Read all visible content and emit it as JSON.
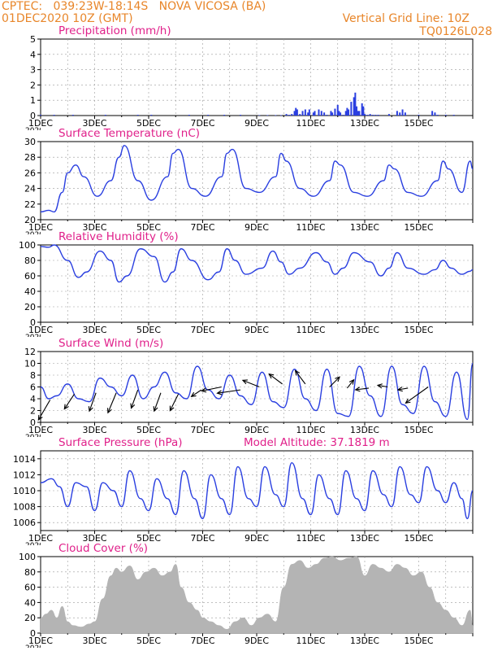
{
  "header": {
    "line1_left": "CPTEC:   039:23W-18:14S   NOVA VICOSA (BA)",
    "line2_left": "01DEC2020 10Z (GMT)",
    "line1_right": "Vertical Grid Line: 10Z",
    "line2_right": "TQ0126L028",
    "model_altitude": "Model Altitude: 37.1819 m"
  },
  "colors": {
    "header_text": "#e8862a",
    "panel_title": "#e0208a",
    "series_line": "#2a3fe0",
    "wind_arrow": "#000000",
    "cloud_fill": "#b4b4b4",
    "grid": "#9a9a9a"
  },
  "chart_data": [
    {
      "type": "bar",
      "title": "Precipitation (mm/h)",
      "ylim": [
        0,
        5
      ],
      "yticks": [
        "0",
        "1",
        "2",
        "3",
        "4",
        "5"
      ],
      "xlabels": [
        "1DEC",
        "3DEC",
        "5DEC",
        "7DEC",
        "9DEC",
        "11DEC",
        "13DEC",
        "15DEC"
      ],
      "x_overflow_label": "2020",
      "x": [
        0.0,
        0.5,
        1.2,
        2.4,
        3.6,
        4.1,
        5.5,
        6.2,
        6.8,
        7.4,
        8.1,
        8.4,
        8.7,
        8.9,
        9.1,
        9.2,
        9.3,
        9.4,
        9.45,
        9.5,
        9.6,
        9.7,
        9.8,
        9.9,
        9.95,
        10.1,
        10.15,
        10.3,
        10.4,
        10.5,
        10.6,
        10.75,
        10.8,
        10.9,
        11.0,
        11.05,
        11.1,
        11.2,
        11.3,
        11.35,
        11.4,
        11.5,
        11.6,
        11.65,
        11.7,
        11.75,
        11.8,
        11.9,
        11.95,
        12.0,
        12.1,
        12.2,
        12.3,
        12.4,
        12.5,
        12.9,
        13.2,
        13.3,
        13.4,
        13.5,
        14.0,
        14.5,
        14.6,
        14.7,
        15.0,
        15.3
      ],
      "values": [
        0.05,
        0.05,
        0.05,
        0.05,
        0.05,
        0.05,
        0.05,
        0.05,
        0.05,
        0.05,
        0.03,
        0.03,
        0.03,
        0.03,
        0.1,
        0.05,
        0.1,
        0.3,
        0.5,
        0.4,
        0.1,
        0.3,
        0.4,
        0.2,
        0.4,
        0.2,
        0.3,
        0.4,
        0.3,
        0.2,
        0.05,
        0.3,
        0.2,
        0.45,
        0.7,
        0.3,
        0.2,
        0.05,
        0.3,
        0.5,
        0.4,
        0.9,
        1.2,
        1.5,
        0.6,
        0.3,
        0.3,
        0.8,
        0.6,
        0.1,
        0.05,
        0.1,
        0.05,
        0.05,
        0.05,
        0.1,
        0.3,
        0.2,
        0.4,
        0.2,
        0.05,
        0.3,
        0.2,
        0.05,
        0.05,
        0.05
      ]
    },
    {
      "type": "line",
      "title": "Surface Temperature (nC)",
      "ylim": [
        20,
        30
      ],
      "yticks": [
        "20",
        "22",
        "24",
        "26",
        "28",
        "30"
      ],
      "xlabels": [
        "1DEC",
        "3DEC",
        "5DEC",
        "7DEC",
        "9DEC",
        "11DEC",
        "13DEC",
        "15DEC"
      ],
      "x_overflow_label": "2020",
      "x": [
        0.0,
        0.3,
        0.5,
        0.8,
        1.0,
        1.3,
        1.6,
        2.1,
        2.6,
        2.9,
        3.1,
        3.6,
        4.1,
        4.7,
        4.9,
        5.1,
        5.6,
        6.1,
        6.7,
        6.9,
        7.1,
        7.6,
        8.1,
        8.7,
        8.9,
        9.1,
        9.6,
        10.1,
        10.7,
        10.9,
        11.1,
        11.6,
        12.1,
        12.7,
        12.9,
        13.1,
        13.6,
        14.1,
        14.7,
        14.9,
        15.1,
        15.6,
        15.9,
        16.0
      ],
      "values": [
        21.0,
        21.2,
        21.0,
        23.5,
        26.0,
        27.0,
        25.5,
        23.0,
        25.0,
        28.0,
        29.5,
        25.0,
        22.5,
        25.5,
        28.5,
        29.0,
        24.0,
        23.0,
        25.5,
        28.5,
        29.0,
        24.0,
        23.5,
        25.5,
        28.5,
        27.5,
        24.0,
        23.0,
        25.0,
        27.5,
        27.0,
        23.5,
        23.0,
        25.0,
        27.0,
        26.5,
        23.5,
        23.0,
        25.0,
        27.5,
        26.5,
        23.5,
        27.5,
        26.5
      ]
    },
    {
      "type": "line",
      "title": "Relative Humidity (%)",
      "ylim": [
        0,
        100
      ],
      "yticks": [
        "0",
        "20",
        "40",
        "60",
        "80",
        "100"
      ],
      "xlabels": [
        "1DEC",
        "3DEC",
        "5DEC",
        "7DEC",
        "9DEC",
        "11DEC",
        "13DEC",
        "15DEC"
      ],
      "x_overflow_label": "2020",
      "x": [
        0.0,
        0.3,
        0.5,
        1.0,
        1.4,
        1.7,
        2.2,
        2.6,
        2.9,
        3.2,
        3.7,
        4.2,
        4.6,
        4.9,
        5.2,
        5.6,
        6.2,
        6.6,
        6.9,
        7.2,
        7.6,
        8.2,
        8.6,
        8.9,
        9.2,
        9.6,
        10.2,
        10.6,
        10.9,
        11.2,
        11.6,
        12.2,
        12.6,
        12.9,
        13.2,
        13.6,
        14.2,
        14.6,
        14.9,
        15.2,
        15.6,
        15.9,
        16.0
      ],
      "values": [
        98.0,
        97.0,
        100.0,
        80.0,
        58.0,
        65.0,
        92.0,
        80.0,
        52.0,
        60.0,
        95.0,
        85.0,
        52.0,
        65.0,
        95.0,
        80.0,
        55.0,
        65.0,
        95.0,
        80.0,
        62.0,
        70.0,
        92.0,
        78.0,
        62.0,
        70.0,
        90.0,
        78.0,
        62.0,
        70.0,
        90.0,
        78.0,
        60.0,
        70.0,
        90.0,
        70.0,
        62.0,
        68.0,
        80.0,
        70.0,
        62.0,
        66.0,
        68.0
      ]
    },
    {
      "type": "line",
      "title": "Surface Wind (m/s)",
      "ylim": [
        0,
        12
      ],
      "yticks": [
        "0",
        "2",
        "4",
        "6",
        "8",
        "10",
        "12"
      ],
      "xlabels": [
        "1DEC",
        "3DEC",
        "5DEC",
        "7DEC",
        "9DEC",
        "11DEC",
        "13DEC",
        "15DEC"
      ],
      "x_overflow_label": "2020",
      "x": [
        0.0,
        0.3,
        0.6,
        1.0,
        1.4,
        1.8,
        2.2,
        2.6,
        3.0,
        3.4,
        3.8,
        4.2,
        4.6,
        5.0,
        5.4,
        5.8,
        6.2,
        6.6,
        7.0,
        7.4,
        7.8,
        8.2,
        8.6,
        9.0,
        9.4,
        9.8,
        10.2,
        10.6,
        11.0,
        11.4,
        11.8,
        12.2,
        12.6,
        13.0,
        13.4,
        13.8,
        14.2,
        14.6,
        15.0,
        15.4,
        15.8,
        16.0
      ],
      "values": [
        6.0,
        4.0,
        4.5,
        6.5,
        4.0,
        3.5,
        7.5,
        6.0,
        4.5,
        8.0,
        4.0,
        6.0,
        8.5,
        5.0,
        4.0,
        9.5,
        5.5,
        4.0,
        8.0,
        4.5,
        3.0,
        8.5,
        3.5,
        2.5,
        9.0,
        4.0,
        2.0,
        9.0,
        1.5,
        1.0,
        9.5,
        4.5,
        1.0,
        9.5,
        3.0,
        1.5,
        9.5,
        3.5,
        1.0,
        8.5,
        0.5,
        10.0
      ]
    },
    {
      "type": "line",
      "title": "Surface Pressure (hPa)",
      "ylim": [
        1005,
        1015
      ],
      "yticks": [
        "1006",
        "1008",
        "1010",
        "1012",
        "1014"
      ],
      "xlabels": [
        "1DEC",
        "3DEC",
        "5DEC",
        "7DEC",
        "9DEC",
        "11DEC",
        "13DEC",
        "15DEC"
      ],
      "x_overflow_label": "2020",
      "x": [
        0.0,
        0.4,
        0.7,
        1.0,
        1.3,
        1.7,
        2.0,
        2.3,
        2.7,
        3.0,
        3.3,
        3.7,
        4.0,
        4.3,
        4.7,
        5.0,
        5.3,
        5.7,
        6.0,
        6.3,
        6.7,
        7.0,
        7.3,
        7.7,
        8.0,
        8.3,
        8.7,
        9.0,
        9.3,
        9.7,
        10.0,
        10.3,
        10.7,
        11.0,
        11.3,
        11.7,
        12.0,
        12.3,
        12.7,
        13.0,
        13.3,
        13.7,
        14.0,
        14.3,
        14.7,
        15.0,
        15.3,
        15.6,
        15.8,
        16.0
      ],
      "values": [
        1011.0,
        1011.5,
        1010.5,
        1008.0,
        1011.0,
        1010.5,
        1007.5,
        1011.0,
        1010.0,
        1008.0,
        1012.5,
        1009.0,
        1007.5,
        1011.5,
        1009.0,
        1007.0,
        1012.5,
        1009.0,
        1006.5,
        1012.0,
        1009.0,
        1007.0,
        1013.0,
        1009.0,
        1008.0,
        1013.0,
        1009.5,
        1008.0,
        1013.5,
        1009.0,
        1007.0,
        1012.0,
        1009.0,
        1007.0,
        1012.5,
        1009.0,
        1007.5,
        1012.5,
        1009.5,
        1008.0,
        1013.0,
        1009.5,
        1008.5,
        1013.0,
        1010.0,
        1008.5,
        1011.0,
        1009.0,
        1006.5,
        1010.0
      ]
    },
    {
      "type": "area",
      "title": "Cloud Cover (%)",
      "ylim": [
        0,
        100
      ],
      "yticks": [
        "0",
        "20",
        "40",
        "60",
        "80",
        "100"
      ],
      "xlabels": [
        "1DEC",
        "3DEC",
        "5DEC",
        "7DEC",
        "9DEC",
        "11DEC",
        "13DEC",
        "15DEC"
      ],
      "x_overflow_label": "2020",
      "x": [
        0.0,
        0.2,
        0.4,
        0.6,
        0.8,
        1.0,
        1.2,
        1.5,
        1.8,
        2.0,
        2.3,
        2.6,
        2.8,
        3.0,
        3.3,
        3.6,
        3.9,
        4.2,
        4.5,
        4.8,
        5.0,
        5.2,
        5.5,
        5.8,
        6.0,
        6.3,
        6.6,
        6.9,
        7.2,
        7.5,
        7.8,
        8.1,
        8.4,
        8.7,
        9.0,
        9.3,
        9.6,
        9.9,
        10.2,
        10.5,
        10.8,
        11.1,
        11.4,
        11.7,
        12.0,
        12.3,
        12.6,
        12.9,
        13.2,
        13.5,
        13.8,
        14.1,
        14.4,
        14.7,
        15.0,
        15.3,
        15.6,
        15.9,
        16.0
      ],
      "values": [
        20.0,
        25.0,
        30.0,
        20.0,
        35.0,
        15.0,
        10.0,
        8.0,
        12.0,
        15.0,
        45.0,
        75.0,
        85.0,
        80.0,
        88.0,
        70.0,
        80.0,
        85.0,
        75.0,
        80.0,
        90.0,
        60.0,
        40.0,
        30.0,
        20.0,
        15.0,
        10.0,
        5.0,
        15.0,
        20.0,
        10.0,
        20.0,
        25.0,
        15.0,
        60.0,
        90.0,
        95.0,
        85.0,
        90.0,
        98.0,
        100.0,
        95.0,
        98.0,
        100.0,
        75.0,
        90.0,
        85.0,
        80.0,
        90.0,
        85.0,
        75.0,
        80.0,
        60.0,
        40.0,
        30.0,
        20.0,
        10.0,
        30.0,
        10.0
      ]
    }
  ],
  "wind_arrows": {
    "x": [
      0.35,
      1.25,
      2.05,
      2.8,
      3.6,
      4.45,
      5.1,
      5.95,
      6.7,
      7.4,
      8.1,
      8.95,
      9.8,
      10.7,
      11.35,
      12.15,
      12.85,
      13.6,
      14.35
    ],
    "y": [
      3.8,
      4.8,
      5.0,
      5.0,
      5.5,
      5.0,
      4.8,
      5.5,
      6.0,
      5.5,
      6.0,
      6.5,
      6.5,
      6.0,
      5.8,
      5.8,
      6.0,
      5.8,
      6.0
    ],
    "u": [
      -0.35,
      -0.3,
      -0.2,
      -0.25,
      -0.2,
      -0.2,
      -0.25,
      -0.3,
      -0.6,
      -0.7,
      -0.5,
      -0.4,
      -0.3,
      0.3,
      0.2,
      -0.4,
      -0.3,
      -0.3,
      -0.7
    ],
    "v": [
      -0.6,
      -0.45,
      -0.55,
      -0.6,
      -0.55,
      -0.55,
      -0.5,
      -0.2,
      -0.12,
      -0.1,
      0.2,
      0.3,
      0.4,
      0.3,
      0.25,
      -0.05,
      0.05,
      -0.05,
      -0.5
    ]
  }
}
